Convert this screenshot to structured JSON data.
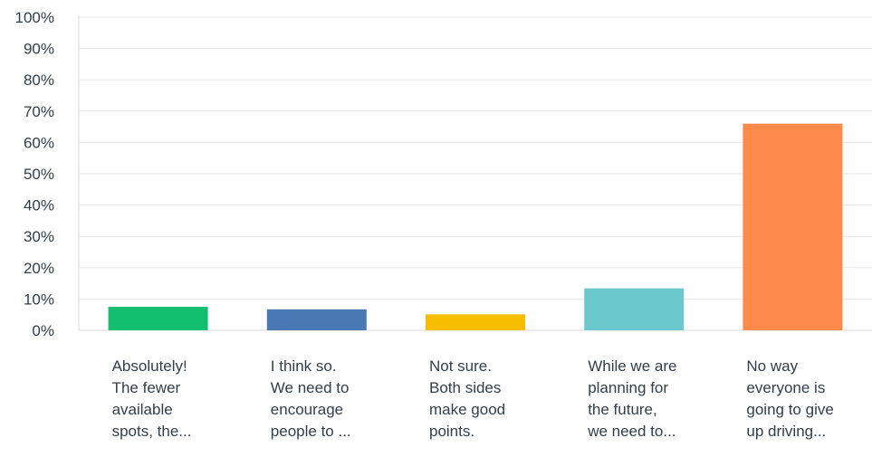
{
  "chart_data": {
    "type": "bar",
    "title": "",
    "xlabel": "",
    "ylabel": "",
    "ylim": [
      0,
      100
    ],
    "yticks": [
      "0%",
      "10%",
      "20%",
      "30%",
      "40%",
      "50%",
      "60%",
      "70%",
      "80%",
      "90%",
      "100%"
    ],
    "grid": true,
    "legend": "none",
    "categories": [
      [
        "Absolutely!",
        "The fewer",
        "available",
        "spots, the..."
      ],
      [
        "I think so.",
        "We need to",
        "encourage",
        "people to ..."
      ],
      [
        "Not sure.",
        "Both sides",
        "make good",
        "points."
      ],
      [
        "While we are",
        "planning for",
        "the future,",
        "we need to..."
      ],
      [
        "No way",
        "everyone is",
        "going to give",
        "up driving..."
      ]
    ],
    "values": [
      7.5,
      6.7,
      5.1,
      13.4,
      66.0
    ],
    "colors": [
      "#13bf6f",
      "#4a78b4",
      "#f7bd00",
      "#6bc8cd",
      "#ff8a4c"
    ]
  }
}
